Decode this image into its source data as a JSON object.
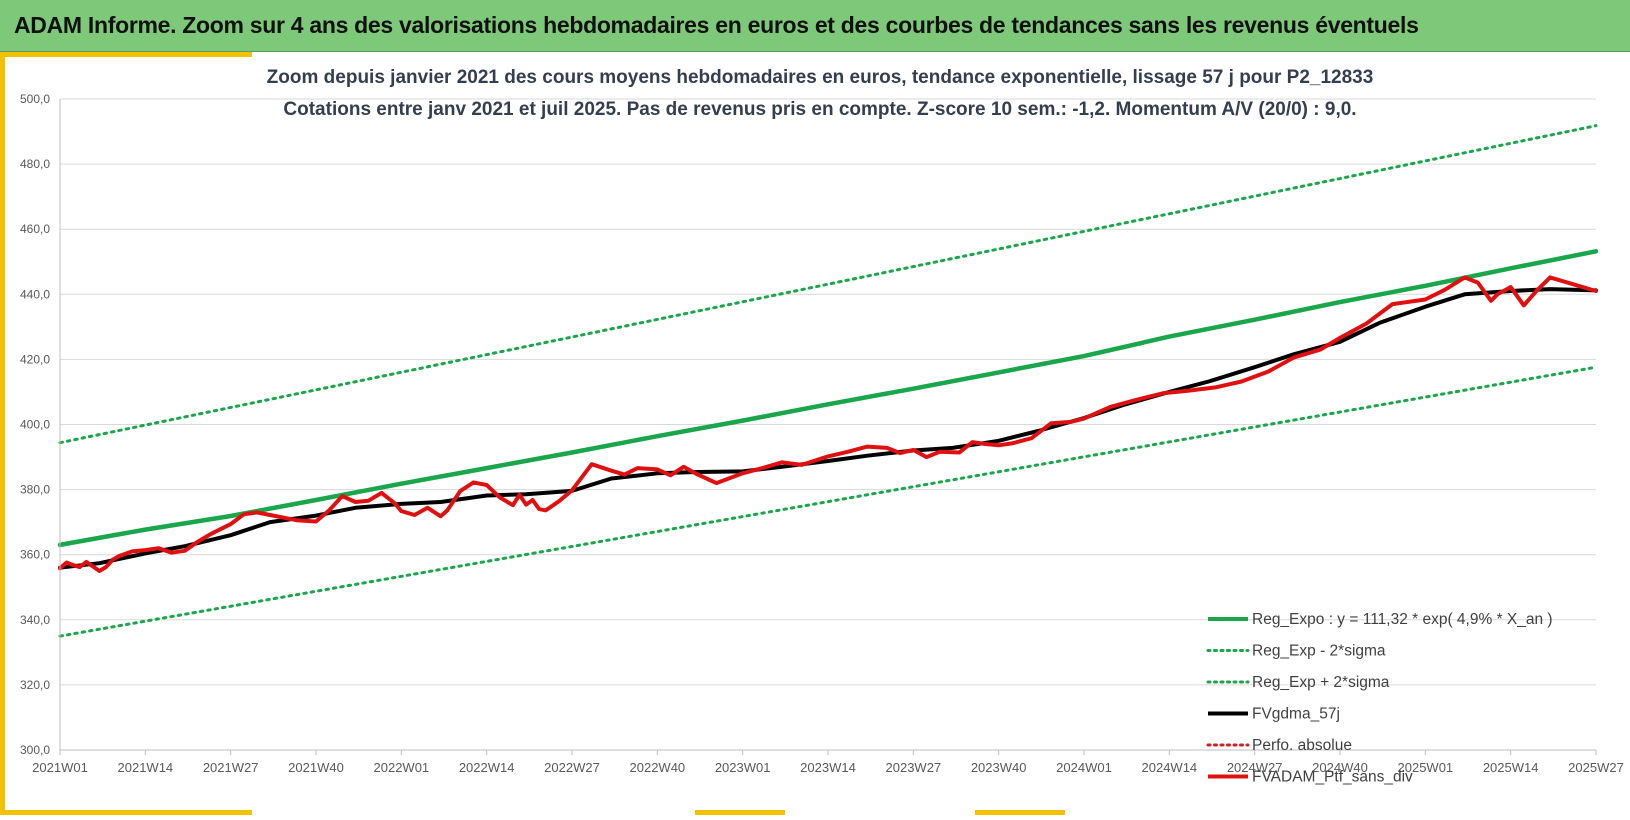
{
  "header": {
    "title": "ADAM Informe. Zoom sur 4 ans des valorisations hebdomadaires en euros et des courbes de tendances sans les revenus éventuels"
  },
  "colors": {
    "banner": "#7ec87a",
    "accent": "#f2c200",
    "trend": "#1aa64a",
    "sigma": "#1aa64a",
    "mma": "#000000",
    "portfolio": "#e01010",
    "perfo": "#d42020"
  },
  "chart_data": {
    "type": "line",
    "title": "Zoom depuis janvier 2021 des cours moyens hebdomadaires  en euros, tendance exponentielle, lissage 57 j pour P2_12833",
    "subtitle": "Cotations  entre janv 2021 et juil 2025. Pas de revenus pris en compte. Z-score 10 sem.: -1,2. Momentum A/V (20/0) : 9,0.",
    "xlabel": "",
    "ylabel": "",
    "ylim": [
      300,
      500
    ],
    "y_ticks": [
      "300,0",
      "320,0",
      "340,0",
      "360,0",
      "380,0",
      "400,0",
      "420,0",
      "440,0",
      "460,0",
      "480,0",
      "500,0"
    ],
    "x_ticks": [
      "2021W01",
      "2021W14",
      "2021W27",
      "2021W40",
      "2022W01",
      "2022W14",
      "2022W27",
      "2022W40",
      "2023W01",
      "2023W14",
      "2023W27",
      "2023W40",
      "2024W01",
      "2024W14",
      "2024W27",
      "2024W40",
      "2025W01",
      "2025W14",
      "2025W27"
    ],
    "grid": true,
    "legend_position": "bottom-right",
    "legend": [
      {
        "label": "Reg_Expo : y = 111,32 * exp( 4,9% *  X_an )",
        "style": "solid",
        "color": "#1aa64a",
        "width": 4
      },
      {
        "label": "Reg_Exp - 2*sigma",
        "style": "dotted",
        "color": "#1aa64a",
        "width": 3
      },
      {
        "label": "Reg_Exp + 2*sigma",
        "style": "dotted",
        "color": "#1aa64a",
        "width": 3
      },
      {
        "label": "FVgdma_57j",
        "style": "solid",
        "color": "#000000",
        "width": 4
      },
      {
        "label": "Perfo. absolue",
        "style": "dotted",
        "color": "#d42020",
        "width": 3
      },
      {
        "label": "FVADAM_Ptf_sans_div",
        "style": "solid",
        "color": "#e01010",
        "width": 4
      }
    ],
    "series": [
      {
        "key": "reg_expo",
        "x": [
          "2021W01",
          "2021W14",
          "2021W27",
          "2021W40",
          "2022W01",
          "2022W14",
          "2022W27",
          "2022W40",
          "2023W01",
          "2023W14",
          "2023W27",
          "2023W40",
          "2024W01",
          "2024W14",
          "2024W27",
          "2024W40",
          "2025W01",
          "2025W14",
          "2025W27"
        ],
        "values": [
          363.0,
          367.7,
          371.9,
          376.8,
          381.8,
          386.6,
          391.4,
          396.4,
          401.2,
          406.2,
          411.0,
          416.0,
          421.0,
          427.0,
          432.2,
          437.6,
          442.6,
          448.0,
          453.2
        ]
      },
      {
        "key": "reg_minus",
        "x": [
          "2021W01",
          "2025W27"
        ],
        "values": [
          335.0,
          417.6
        ]
      },
      {
        "key": "reg_plus",
        "x": [
          "2021W01",
          "2025W27"
        ],
        "values": [
          394.4,
          491.8
        ]
      },
      {
        "key": "mma",
        "x": [
          "2021W01",
          "2021W07",
          "2021W14",
          "2021W20",
          "2021W27",
          "2021W33",
          "2021W40",
          "2021W46",
          "2022W01",
          "2022W07",
          "2022W14",
          "2022W20",
          "2022W27",
          "2022W33",
          "2022W40",
          "2022W46",
          "2023W01",
          "2023W07",
          "2023W14",
          "2023W20",
          "2023W27",
          "2023W33",
          "2023W40",
          "2023W46",
          "2024W01",
          "2024W07",
          "2024W14",
          "2024W20",
          "2024W27",
          "2024W33",
          "2024W40",
          "2024W46",
          "2025W01",
          "2025W07",
          "2025W14",
          "2025W20",
          "2025W27"
        ],
        "values": [
          356.0,
          357.4,
          360.4,
          362.6,
          366.0,
          370.0,
          372.0,
          374.4,
          375.6,
          376.2,
          378.2,
          378.6,
          379.6,
          383.4,
          385.0,
          385.4,
          385.6,
          387.0,
          388.8,
          390.4,
          392.0,
          392.8,
          395.0,
          398.0,
          402.0,
          406.0,
          410.0,
          413.2,
          417.6,
          421.6,
          425.4,
          431.2,
          436.2,
          440.0,
          441.0,
          441.6,
          441.2
        ]
      },
      {
        "key": "portfolio",
        "x": [
          "2021W01",
          "2021W02",
          "2021W03",
          "2021W04",
          "2021W05",
          "2021W06",
          "2021W07",
          "2021W08",
          "2021W09",
          "2021W10",
          "2021W12",
          "2021W14",
          "2021W16",
          "2021W18",
          "2021W20",
          "2021W22",
          "2021W24",
          "2021W27",
          "2021W29",
          "2021W31",
          "2021W33",
          "2021W35",
          "2021W37",
          "2021W40",
          "2021W42",
          "2021W44",
          "2021W46",
          "2021W48",
          "2021W50",
          "2021W52",
          "2022W01",
          "2022W03",
          "2022W05",
          "2022W07",
          "2022W08",
          "2022W10",
          "2022W12",
          "2022W14",
          "2022W16",
          "2022W18",
          "2022W19",
          "2022W20",
          "2022W21",
          "2022W22",
          "2022W23",
          "2022W25",
          "2022W27",
          "2022W30",
          "2022W33",
          "2022W35",
          "2022W37",
          "2022W40",
          "2022W42",
          "2022W44",
          "2022W46",
          "2022W49",
          "2023W01",
          "2023W04",
          "2023W07",
          "2023W10",
          "2023W14",
          "2023W17",
          "2023W20",
          "2023W23",
          "2023W25",
          "2023W27",
          "2023W29",
          "2023W31",
          "2023W34",
          "2023W36",
          "2023W38",
          "2023W40",
          "2023W42",
          "2023W45",
          "2023W48",
          "2023W51",
          "2024W01",
          "2024W05",
          "2024W09",
          "2024W13",
          "2024W17",
          "2024W21",
          "2024W25",
          "2024W29",
          "2024W33",
          "2024W37",
          "2024W40",
          "2024W44",
          "2024W48",
          "2025W01",
          "2025W04",
          "2025W07",
          "2025W09",
          "2025W11",
          "2025W12",
          "2025W14",
          "2025W16",
          "2025W18",
          "2025W20",
          "2025W22",
          "2025W24",
          "2025W27"
        ],
        "values": [
          355.8,
          357.6,
          356.8,
          356.2,
          357.8,
          356.4,
          355.0,
          356.2,
          358.4,
          359.6,
          361.0,
          361.4,
          362.0,
          360.6,
          361.2,
          364.0,
          366.4,
          369.4,
          372.4,
          373.0,
          372.2,
          371.4,
          370.6,
          370.2,
          373.6,
          378.0,
          376.2,
          376.6,
          379.0,
          375.8,
          373.4,
          372.2,
          374.4,
          371.8,
          373.6,
          379.6,
          382.2,
          381.4,
          377.6,
          375.2,
          378.4,
          375.4,
          376.8,
          374.0,
          373.6,
          376.4,
          379.8,
          387.8,
          385.8,
          384.6,
          386.6,
          386.2,
          384.4,
          387.0,
          384.8,
          382.0,
          385.0,
          386.6,
          388.4,
          387.6,
          390.2,
          391.6,
          393.2,
          392.8,
          391.2,
          392.2,
          390.0,
          391.6,
          391.4,
          394.6,
          394.0,
          393.6,
          394.2,
          395.8,
          400.4,
          400.8,
          401.8,
          405.4,
          407.6,
          409.6,
          410.4,
          411.4,
          413.2,
          416.2,
          420.6,
          423.0,
          426.6,
          431.0,
          437.0,
          438.4,
          441.4,
          445.2,
          443.6,
          438.0,
          440.0,
          442.2,
          436.6,
          441.2,
          445.2,
          444.0,
          442.8,
          441.0
        ]
      }
    ]
  }
}
